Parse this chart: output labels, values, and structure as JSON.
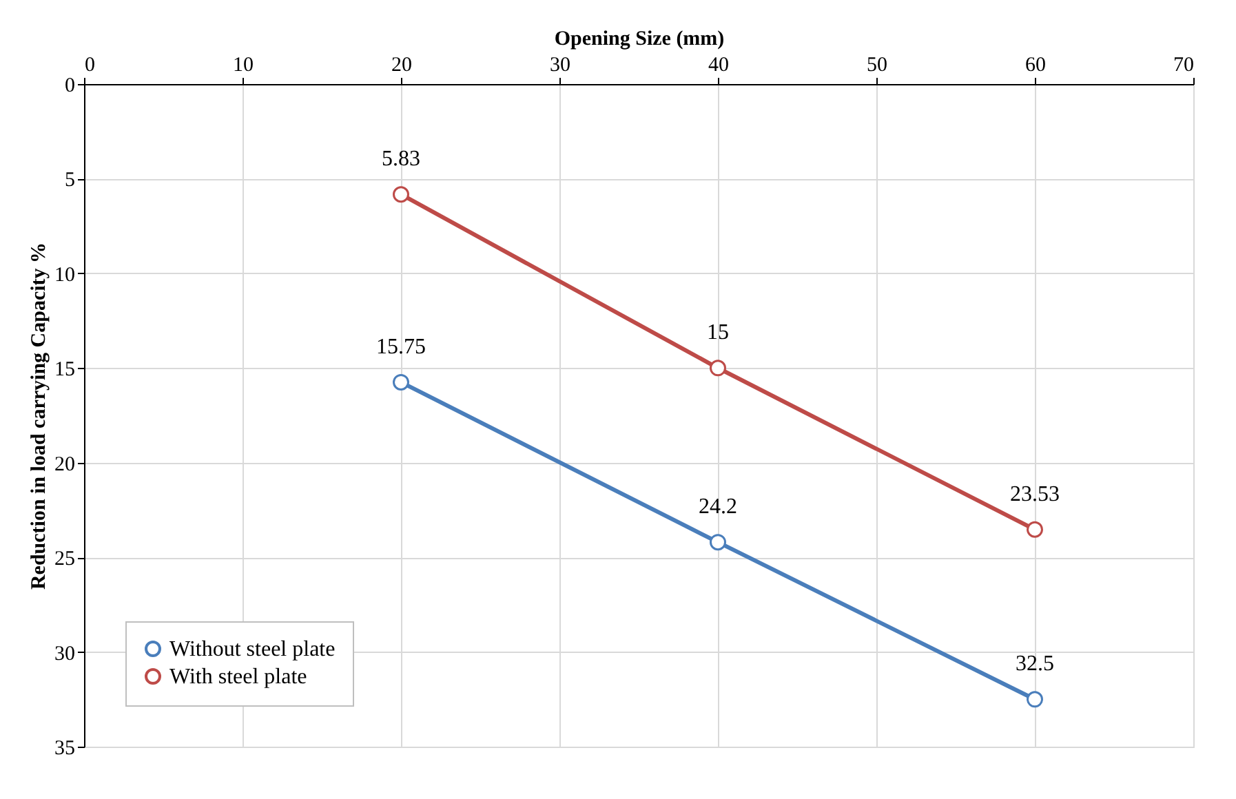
{
  "chart_data": {
    "type": "line",
    "xlabel": "Opening Size (mm)",
    "ylabel": "Reduction in load carrying Capacity %",
    "x": [
      20,
      40,
      60
    ],
    "series": [
      {
        "name": "Without steel plate",
        "color": "#4a7ebb",
        "values": [
          15.75,
          24.2,
          32.5
        ]
      },
      {
        "name": "With steel plate",
        "color": "#be4b48",
        "values": [
          5.83,
          15,
          23.53
        ]
      }
    ],
    "xlim": [
      0,
      70
    ],
    "xticks": [
      0,
      10,
      20,
      30,
      40,
      50,
      60,
      70
    ],
    "ylim": [
      35,
      0
    ],
    "yticks": [
      0,
      5,
      10,
      15,
      20,
      25,
      30,
      35
    ],
    "grid": true,
    "legend": "bottom left",
    "marker": "circle",
    "line_style": "solid",
    "data_labels": true
  }
}
